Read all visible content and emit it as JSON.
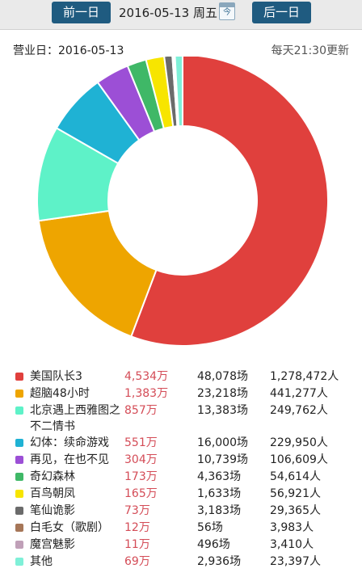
{
  "toolbar": {
    "prev_label": "前一日",
    "date_label": "2016-05-13 周五",
    "calendar_icon": "calendar-icon",
    "calendar_text": "今",
    "next_label": "后一日"
  },
  "info": {
    "business_day": "营业日：2016-05-13",
    "update_note": "每天21:30更新"
  },
  "colors": {
    "accent": "#1f5b80",
    "gross_text": "#d44c57"
  },
  "chart_data": {
    "type": "pie",
    "variant": "donut",
    "categories": [
      "美国队长3",
      "超脑48小时",
      "北京遇上西雅图之不二情书",
      "幻体：续命游戏",
      "再见，在也不见",
      "奇幻森林",
      "百鸟朝凤",
      "笔仙诡影",
      "白毛女（歌剧）",
      "魔宫魅影",
      "其他"
    ],
    "values": [
      4534,
      1383,
      857,
      551,
      304,
      173,
      165,
      73,
      12,
      11,
      69
    ],
    "colors": [
      "#e0403d",
      "#eea500",
      "#5ef2c8",
      "#1fb2d4",
      "#9c4fd6",
      "#3fb867",
      "#f7e500",
      "#6b6b6b",
      "#a67658",
      "#c0a0b8",
      "#7ff0d8"
    ],
    "unit": "万"
  },
  "legend": [
    {
      "name": "美国队长3",
      "gross": "4,534万",
      "shows": "48,078场",
      "audience": "1,278,472人"
    },
    {
      "name": "超脑48小时",
      "gross": "1,383万",
      "shows": "23,218场",
      "audience": "441,277人"
    },
    {
      "name": "北京遇上西雅图之不二情书",
      "gross": "857万",
      "shows": "13,383场",
      "audience": "249,762人"
    },
    {
      "name": "幻体：续命游戏",
      "gross": "551万",
      "shows": "16,000场",
      "audience": "229,950人"
    },
    {
      "name": "再见，在也不见",
      "gross": "304万",
      "shows": "10,739场",
      "audience": "106,609人"
    },
    {
      "name": "奇幻森林",
      "gross": "173万",
      "shows": "4,363场",
      "audience": "54,614人"
    },
    {
      "name": "百鸟朝凤",
      "gross": "165万",
      "shows": "1,633场",
      "audience": "56,921人"
    },
    {
      "name": "笔仙诡影",
      "gross": "73万",
      "shows": "3,183场",
      "audience": "29,365人"
    },
    {
      "name": "白毛女（歌剧）",
      "gross": "12万",
      "shows": "56场",
      "audience": "3,983人"
    },
    {
      "name": "魔宫魅影",
      "gross": "11万",
      "shows": "496场",
      "audience": "3,410人"
    },
    {
      "name": "其他",
      "gross": "69万",
      "shows": "2,936场",
      "audience": "23,397人"
    }
  ]
}
